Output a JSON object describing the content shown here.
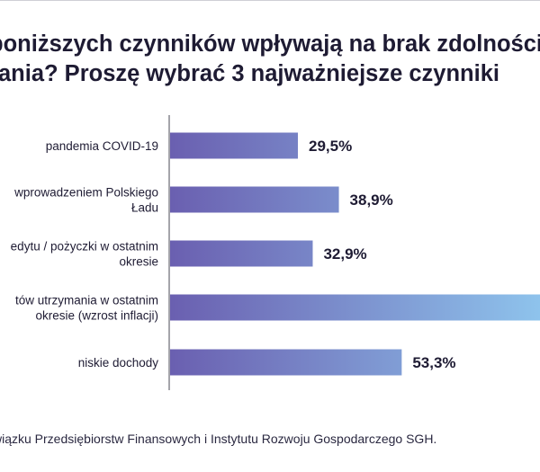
{
  "title": {
    "line1": "poniższych czynników wpływają na brak zdolności",
    "line2": "ania? Proszę wybrać 3 najważniejsze czynniki"
  },
  "note": "wiązku Przedsiębiorstw Finansowych i Instytutu Rozwoju Gospodarczego SGH.",
  "colors": {
    "bar_start": "#6a5fb0",
    "bar_end": "#8ec3ec",
    "axis": "#4a4a55",
    "text": "#1e1b33"
  },
  "chart_data": {
    "type": "bar",
    "orientation": "horizontal",
    "categories": [
      [
        "pandemia COVID-19"
      ],
      [
        "wprowadzeniem Polskiego",
        "Ładu"
      ],
      [
        "edytu / pożyczki w ostatnim",
        "okresie"
      ],
      [
        "tów utrzymania w ostatnim",
        "okresie (wzrost inflacji)"
      ],
      [
        "niskie dochody"
      ]
    ],
    "values": [
      29.5,
      38.9,
      32.9,
      85,
      53.3
    ],
    "value_labels": [
      "29,5%",
      "38,9%",
      "32,9%",
      "",
      "53,3%"
    ],
    "xlim": [
      0,
      85
    ],
    "grid": false,
    "legend": "none"
  }
}
